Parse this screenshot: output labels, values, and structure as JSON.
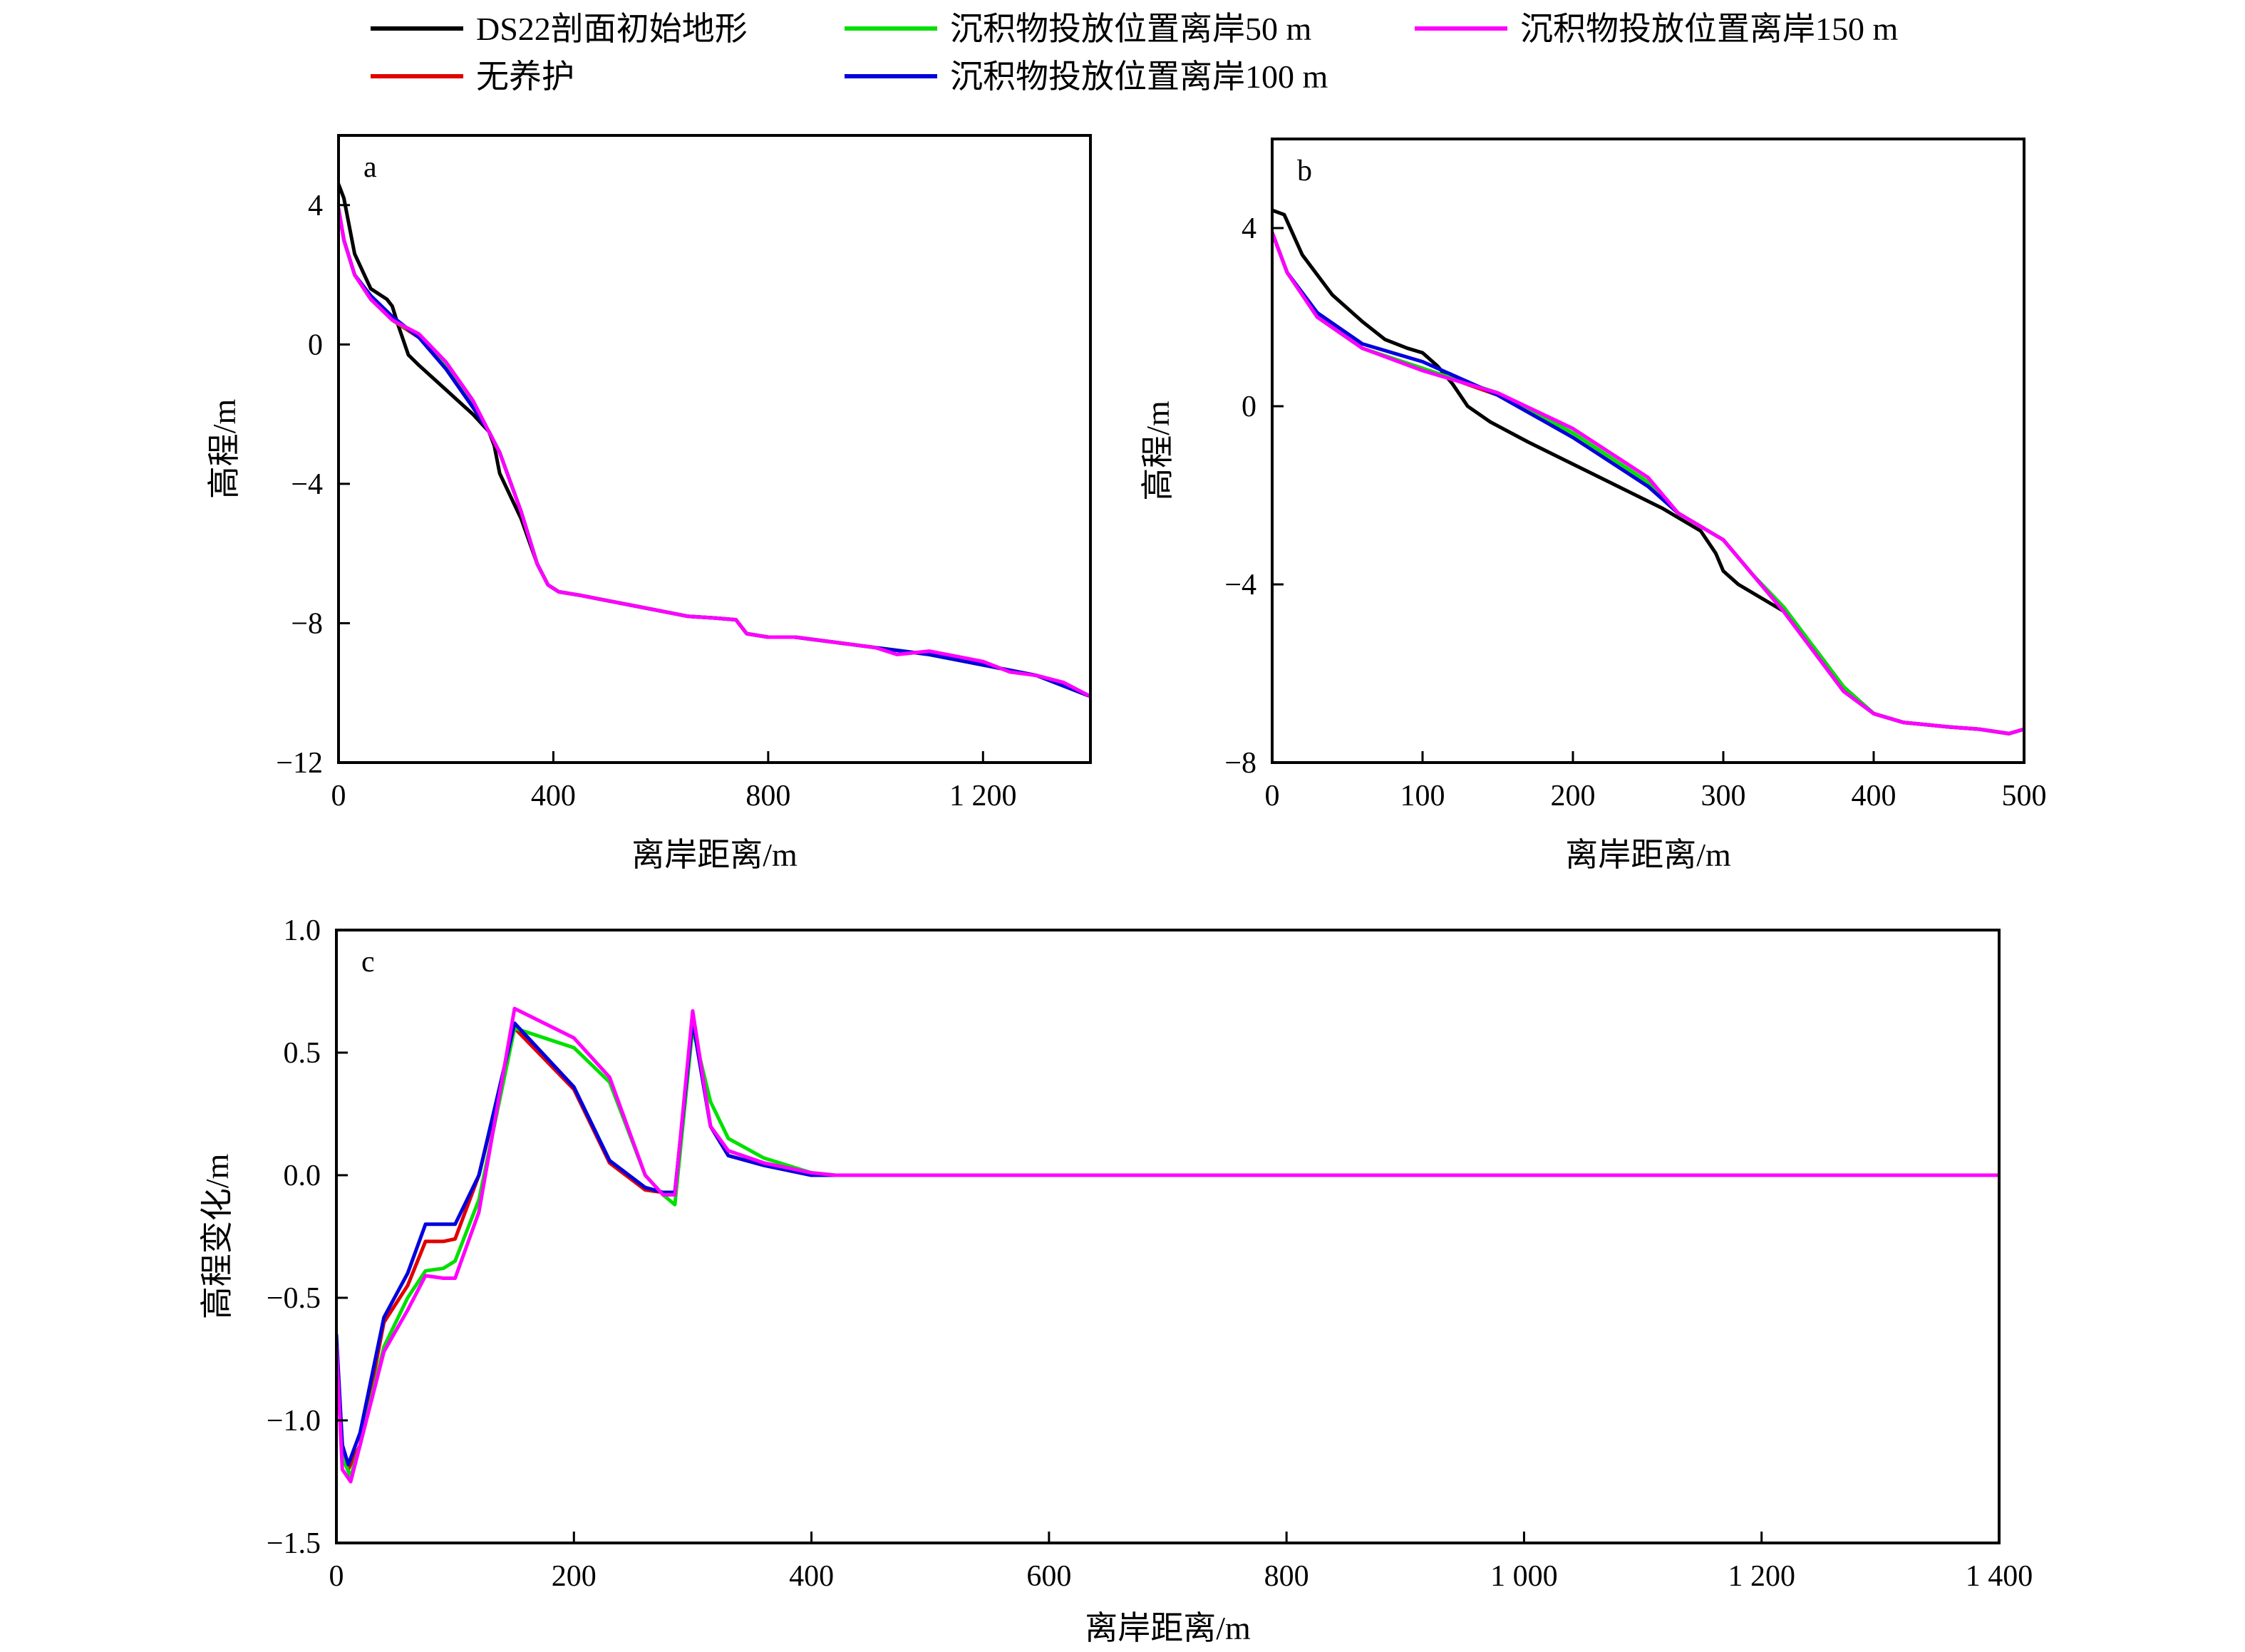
{
  "legend": {
    "entries": [
      {
        "label": "DS22剖面初始地形",
        "color": "#000000"
      },
      {
        "label": "沉积物投放位置离岸50 m",
        "color": "#00e000"
      },
      {
        "label": "沉积物投放位置离岸150 m",
        "color": "#ff00ff"
      },
      {
        "label": "无养护",
        "color": "#e00000"
      },
      {
        "label": "沉积物投放位置离岸100 m",
        "color": "#0000dd"
      }
    ]
  },
  "chart_data": [
    {
      "panel": "a",
      "type": "line",
      "xlabel": "离岸距离/m",
      "ylabel": "高程/m",
      "xlim": [
        0,
        1400
      ],
      "ylim": [
        -12,
        6
      ],
      "xticks": [
        0,
        400,
        800,
        1200
      ],
      "xtick_labels": [
        "0",
        "400",
        "800",
        "1 200"
      ],
      "yticks": [
        -12,
        -8,
        -4,
        0,
        4
      ],
      "ytick_labels": [
        "−12",
        "−8",
        "−4",
        "0",
        "4"
      ],
      "series": [
        {
          "name": "DS22剖面初始地形",
          "color": "#000000",
          "x": [
            0,
            10,
            30,
            60,
            90,
            100,
            110,
            130,
            150,
            200,
            250,
            280,
            290,
            300,
            340,
            370,
            390,
            410,
            450,
            500,
            550,
            600,
            650,
            700,
            740,
            760,
            800,
            850,
            900,
            1000,
            1100,
            1200,
            1300,
            1400
          ],
          "y": [
            4.6,
            4.2,
            2.6,
            1.6,
            1.3,
            1.1,
            0.6,
            -0.3,
            -0.6,
            -1.3,
            -2.0,
            -2.5,
            -2.9,
            -3.7,
            -5.0,
            -6.3,
            -6.9,
            -7.1,
            -7.2,
            -7.35,
            -7.5,
            -7.65,
            -7.8,
            -7.85,
            -7.9,
            -8.3,
            -8.4,
            -8.4,
            -8.5,
            -8.7,
            -8.9,
            -9.2,
            -9.5,
            -10.1
          ]
        },
        {
          "name": "无养护",
          "color": "#e00000",
          "x": [
            0,
            10,
            30,
            60,
            100,
            150,
            200,
            250,
            280,
            300,
            340,
            370,
            390,
            410,
            450,
            500,
            550,
            600,
            650,
            700,
            740,
            760,
            800,
            850,
            900,
            1000,
            1100,
            1200,
            1300,
            1400
          ],
          "y": [
            3.9,
            3.0,
            2.0,
            1.3,
            0.7,
            0.2,
            -0.7,
            -1.8,
            -2.5,
            -3.1,
            -4.8,
            -6.3,
            -6.9,
            -7.1,
            -7.2,
            -7.35,
            -7.5,
            -7.65,
            -7.8,
            -7.85,
            -7.9,
            -8.3,
            -8.4,
            -8.4,
            -8.5,
            -8.7,
            -8.9,
            -9.2,
            -9.5,
            -10.1
          ]
        },
        {
          "name": "沉积物投放位置离岸50 m",
          "color": "#00e000",
          "x": [
            0,
            10,
            30,
            60,
            100,
            150,
            200,
            250,
            280,
            300,
            340,
            370,
            390,
            410,
            450,
            500,
            550,
            600,
            650,
            700,
            740,
            760,
            800,
            850,
            900,
            1000,
            1100,
            1200,
            1300,
            1400
          ],
          "y": [
            3.9,
            3.0,
            2.0,
            1.3,
            0.7,
            0.25,
            -0.6,
            -1.7,
            -2.5,
            -3.1,
            -4.8,
            -6.3,
            -6.9,
            -7.1,
            -7.2,
            -7.35,
            -7.5,
            -7.65,
            -7.8,
            -7.85,
            -7.9,
            -8.3,
            -8.4,
            -8.4,
            -8.5,
            -8.7,
            -8.9,
            -9.2,
            -9.5,
            -10.1
          ]
        },
        {
          "name": "沉积物投放位置离岸100 m",
          "color": "#0000dd",
          "x": [
            0,
            10,
            30,
            60,
            100,
            150,
            200,
            250,
            280,
            300,
            340,
            370,
            390,
            410,
            450,
            500,
            550,
            600,
            650,
            700,
            740,
            760,
            800,
            850,
            900,
            1000,
            1100,
            1200,
            1300,
            1400
          ],
          "y": [
            3.9,
            3.0,
            2.0,
            1.4,
            0.8,
            0.2,
            -0.7,
            -1.8,
            -2.5,
            -3.1,
            -4.8,
            -6.3,
            -6.9,
            -7.1,
            -7.2,
            -7.35,
            -7.5,
            -7.65,
            -7.8,
            -7.85,
            -7.9,
            -8.3,
            -8.4,
            -8.4,
            -8.5,
            -8.7,
            -8.9,
            -9.2,
            -9.5,
            -10.1
          ]
        },
        {
          "name": "沉积物投放位置离岸150 m",
          "color": "#ff00ff",
          "x": [
            0,
            10,
            30,
            60,
            100,
            150,
            200,
            250,
            280,
            300,
            340,
            370,
            390,
            410,
            450,
            500,
            550,
            600,
            650,
            700,
            740,
            760,
            800,
            850,
            900,
            1000,
            1040,
            1100,
            1200,
            1250,
            1300,
            1350,
            1400
          ],
          "y": [
            3.9,
            3.0,
            2.0,
            1.3,
            0.7,
            0.3,
            -0.5,
            -1.6,
            -2.5,
            -3.1,
            -4.8,
            -6.3,
            -6.9,
            -7.1,
            -7.2,
            -7.35,
            -7.5,
            -7.65,
            -7.8,
            -7.85,
            -7.9,
            -8.3,
            -8.4,
            -8.4,
            -8.5,
            -8.7,
            -8.9,
            -8.8,
            -9.1,
            -9.4,
            -9.5,
            -9.7,
            -10.1
          ]
        }
      ]
    },
    {
      "panel": "b",
      "type": "line",
      "xlabel": "离岸距离/m",
      "ylabel": "高程/m",
      "xlim": [
        0,
        500
      ],
      "ylim": [
        -8,
        6
      ],
      "xticks": [
        0,
        100,
        200,
        300,
        400,
        500
      ],
      "xtick_labels": [
        "0",
        "100",
        "200",
        "300",
        "400",
        "500"
      ],
      "yticks": [
        -8,
        -4,
        0,
        4
      ],
      "ytick_labels": [
        "−8",
        "−4",
        "0",
        "4"
      ],
      "series": [
        {
          "name": "DS22剖面初始地形",
          "color": "#000000",
          "x": [
            0,
            8,
            20,
            40,
            60,
            75,
            90,
            100,
            110,
            120,
            130,
            145,
            170,
            200,
            230,
            260,
            285,
            295,
            300,
            310,
            340,
            360,
            380,
            400,
            420,
            450,
            470,
            490,
            500
          ],
          "y": [
            4.4,
            4.3,
            3.4,
            2.5,
            1.9,
            1.5,
            1.3,
            1.2,
            0.9,
            0.5,
            0.0,
            -0.35,
            -0.8,
            -1.3,
            -1.8,
            -2.3,
            -2.8,
            -3.3,
            -3.7,
            -4.0,
            -4.6,
            -5.4,
            -6.3,
            -6.9,
            -7.1,
            -7.2,
            -7.25,
            -7.35,
            -7.25
          ]
        },
        {
          "name": "无养护",
          "color": "#e00000",
          "x": [
            0,
            10,
            30,
            60,
            100,
            150,
            200,
            250,
            270,
            290,
            300,
            320,
            340,
            360,
            380,
            400,
            420,
            450,
            470,
            490,
            500
          ],
          "y": [
            3.9,
            3.0,
            2.0,
            1.3,
            0.85,
            0.25,
            -0.7,
            -1.8,
            -2.4,
            -2.8,
            -3.0,
            -3.8,
            -4.6,
            -5.5,
            -6.4,
            -6.9,
            -7.1,
            -7.2,
            -7.25,
            -7.35,
            -7.25
          ]
        },
        {
          "name": "沉积物投放位置离岸50 m",
          "color": "#00e000",
          "x": [
            0,
            10,
            30,
            60,
            100,
            150,
            200,
            250,
            270,
            290,
            300,
            320,
            340,
            360,
            380,
            400,
            420,
            450,
            470,
            490,
            500
          ],
          "y": [
            3.9,
            3.0,
            2.0,
            1.3,
            0.85,
            0.3,
            -0.6,
            -1.7,
            -2.4,
            -2.8,
            -3.0,
            -3.8,
            -4.5,
            -5.4,
            -6.3,
            -6.9,
            -7.1,
            -7.2,
            -7.25,
            -7.35,
            -7.25
          ]
        },
        {
          "name": "沉积物投放位置离岸100 m",
          "color": "#0000dd",
          "x": [
            0,
            10,
            30,
            60,
            100,
            150,
            200,
            250,
            270,
            290,
            300,
            320,
            340,
            360,
            380,
            400,
            420,
            450,
            470,
            490,
            500
          ],
          "y": [
            3.9,
            3.0,
            2.1,
            1.4,
            1.0,
            0.25,
            -0.7,
            -1.8,
            -2.4,
            -2.8,
            -3.0,
            -3.8,
            -4.6,
            -5.5,
            -6.4,
            -6.9,
            -7.1,
            -7.2,
            -7.25,
            -7.35,
            -7.25
          ]
        },
        {
          "name": "沉积物投放位置离岸150 m",
          "color": "#ff00ff",
          "x": [
            0,
            10,
            30,
            60,
            100,
            150,
            200,
            250,
            270,
            290,
            300,
            320,
            340,
            360,
            380,
            400,
            420,
            450,
            470,
            490,
            500
          ],
          "y": [
            3.9,
            3.0,
            2.0,
            1.3,
            0.8,
            0.3,
            -0.5,
            -1.6,
            -2.4,
            -2.8,
            -3.0,
            -3.8,
            -4.6,
            -5.5,
            -6.4,
            -6.9,
            -7.1,
            -7.2,
            -7.25,
            -7.35,
            -7.25
          ]
        }
      ]
    },
    {
      "panel": "c",
      "type": "line",
      "xlabel": "离岸距离/m",
      "ylabel": "高程变化/m",
      "xlim": [
        0,
        1400
      ],
      "ylim": [
        -1.5,
        1.0
      ],
      "xticks": [
        0,
        200,
        400,
        600,
        800,
        1000,
        1200,
        1400
      ],
      "xtick_labels": [
        "0",
        "200",
        "400",
        "600",
        "800",
        "1 000",
        "1 200",
        "1 400"
      ],
      "yticks": [
        -1.5,
        -1.0,
        -0.5,
        0.0,
        0.5,
        1.0
      ],
      "ytick_labels": [
        "−1.5",
        "−1.0",
        "−0.5",
        "0.0",
        "0.5",
        "1.0"
      ],
      "series": [
        {
          "name": "无养护",
          "color": "#e00000",
          "x": [
            0,
            5,
            10,
            20,
            40,
            60,
            75,
            90,
            100,
            120,
            150,
            200,
            230,
            260,
            275,
            285,
            300,
            315,
            330,
            360,
            400,
            420,
            1400
          ],
          "y": [
            -0.7,
            -1.1,
            -1.2,
            -1.1,
            -0.6,
            -0.45,
            -0.27,
            -0.27,
            -0.26,
            0.0,
            0.6,
            0.35,
            0.05,
            -0.06,
            -0.07,
            -0.07,
            0.63,
            0.2,
            0.08,
            0.04,
            0.0,
            0.0,
            0.0
          ]
        },
        {
          "name": "沉积物投放位置离岸50 m",
          "color": "#00e000",
          "x": [
            0,
            5,
            12,
            20,
            40,
            60,
            75,
            90,
            100,
            120,
            150,
            200,
            230,
            260,
            275,
            285,
            300,
            315,
            330,
            360,
            400,
            420,
            1400
          ],
          "y": [
            -0.7,
            -1.15,
            -1.23,
            -1.1,
            -0.7,
            -0.5,
            -0.39,
            -0.38,
            -0.35,
            -0.1,
            0.6,
            0.52,
            0.38,
            0.0,
            -0.08,
            -0.12,
            0.6,
            0.3,
            0.15,
            0.07,
            0.01,
            0.0,
            0.0
          ]
        },
        {
          "name": "沉积物投放位置离岸100 m",
          "color": "#0000dd",
          "x": [
            0,
            5,
            10,
            20,
            40,
            60,
            75,
            90,
            100,
            120,
            150,
            200,
            230,
            260,
            275,
            285,
            300,
            315,
            330,
            360,
            400,
            420,
            1400
          ],
          "y": [
            -0.65,
            -1.1,
            -1.18,
            -1.05,
            -0.58,
            -0.4,
            -0.2,
            -0.2,
            -0.2,
            0.0,
            0.62,
            0.36,
            0.06,
            -0.05,
            -0.07,
            -0.07,
            0.63,
            0.2,
            0.08,
            0.04,
            0.0,
            0.0,
            0.0
          ]
        },
        {
          "name": "沉积物投放位置离岸150 m",
          "color": "#ff00ff",
          "x": [
            0,
            5,
            12,
            20,
            40,
            60,
            75,
            90,
            100,
            120,
            150,
            200,
            230,
            260,
            275,
            285,
            300,
            315,
            330,
            360,
            400,
            420,
            1400
          ],
          "y": [
            -0.7,
            -1.2,
            -1.25,
            -1.1,
            -0.72,
            -0.55,
            -0.41,
            -0.42,
            -0.42,
            -0.15,
            0.68,
            0.56,
            0.4,
            0.0,
            -0.08,
            -0.08,
            0.67,
            0.2,
            0.1,
            0.05,
            0.01,
            0.0,
            0.0
          ]
        }
      ]
    }
  ]
}
